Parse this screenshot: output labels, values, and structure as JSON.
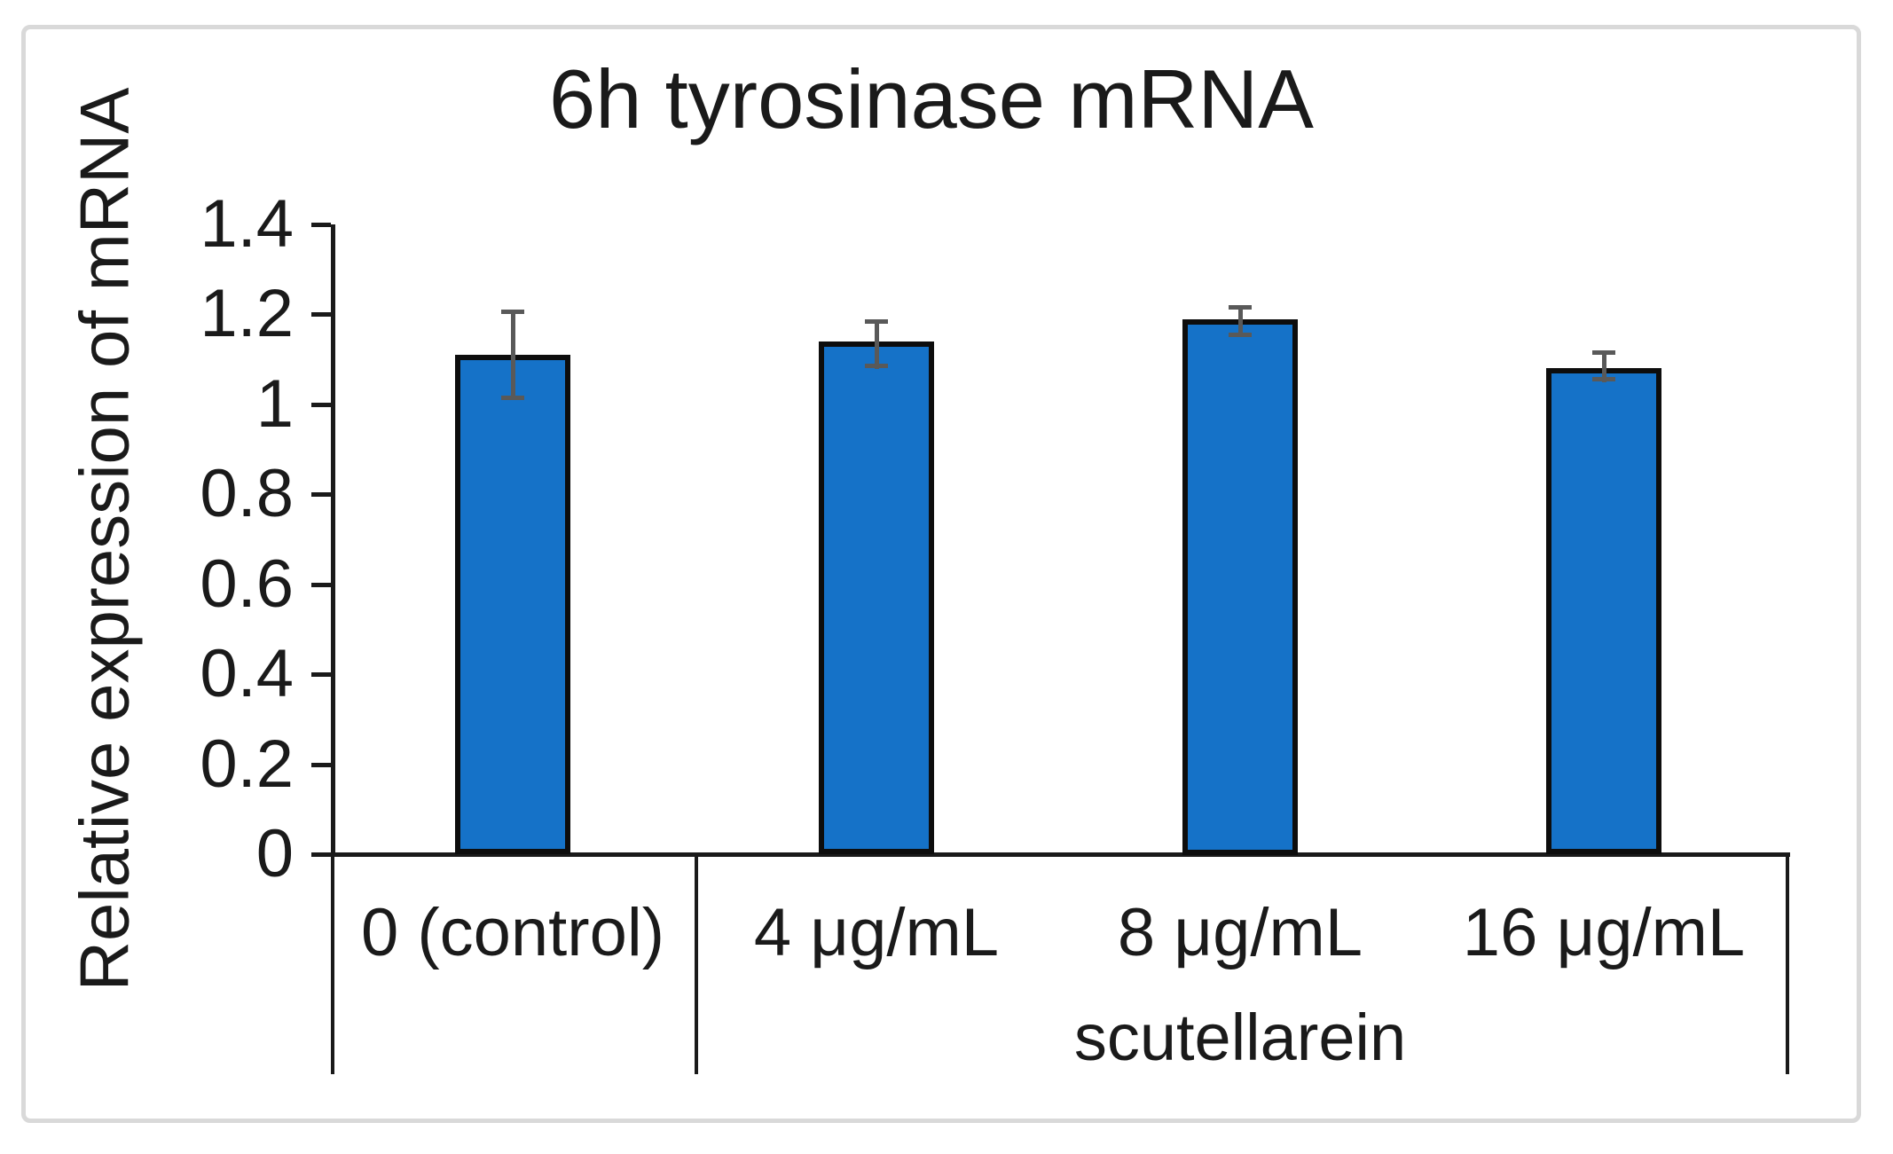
{
  "chart_data": {
    "type": "bar",
    "title": "6h tyrosinase mRNA",
    "ylabel": "Relative expression of mRNA",
    "xlabel": "",
    "categories": [
      "0 (control)",
      "4 μg/mL",
      "8 μg/mL",
      "16 μg/mL"
    ],
    "values": [
      1.11,
      1.14,
      1.19,
      1.08
    ],
    "error_high": [
      1.21,
      1.19,
      1.22,
      1.12
    ],
    "error_low": [
      1.01,
      1.08,
      1.15,
      1.05
    ],
    "group_label": "scutellarein",
    "group_span": {
      "from": 1,
      "to": 3
    },
    "ylim": [
      0,
      1.4
    ],
    "yticks": [
      {
        "v": 1.4,
        "label": "1.4"
      },
      {
        "v": 1.2,
        "label": "1.2"
      },
      {
        "v": 1.0,
        "label": "1"
      },
      {
        "v": 0.8,
        "label": "0.8"
      },
      {
        "v": 0.6,
        "label": "0.6"
      },
      {
        "v": 0.4,
        "label": "0.4"
      },
      {
        "v": 0.2,
        "label": "0.2"
      },
      {
        "v": 0.0,
        "label": "0"
      }
    ],
    "grid": false,
    "legend": false
  },
  "colors": {
    "bar_fill": "#1572c8",
    "bar_border": "#0d0d0d",
    "error_bar": "#595959",
    "axis": "#1a1a1a",
    "text": "#1a1a1a",
    "frame": "#d9d9d9",
    "background": "#ffffff"
  }
}
